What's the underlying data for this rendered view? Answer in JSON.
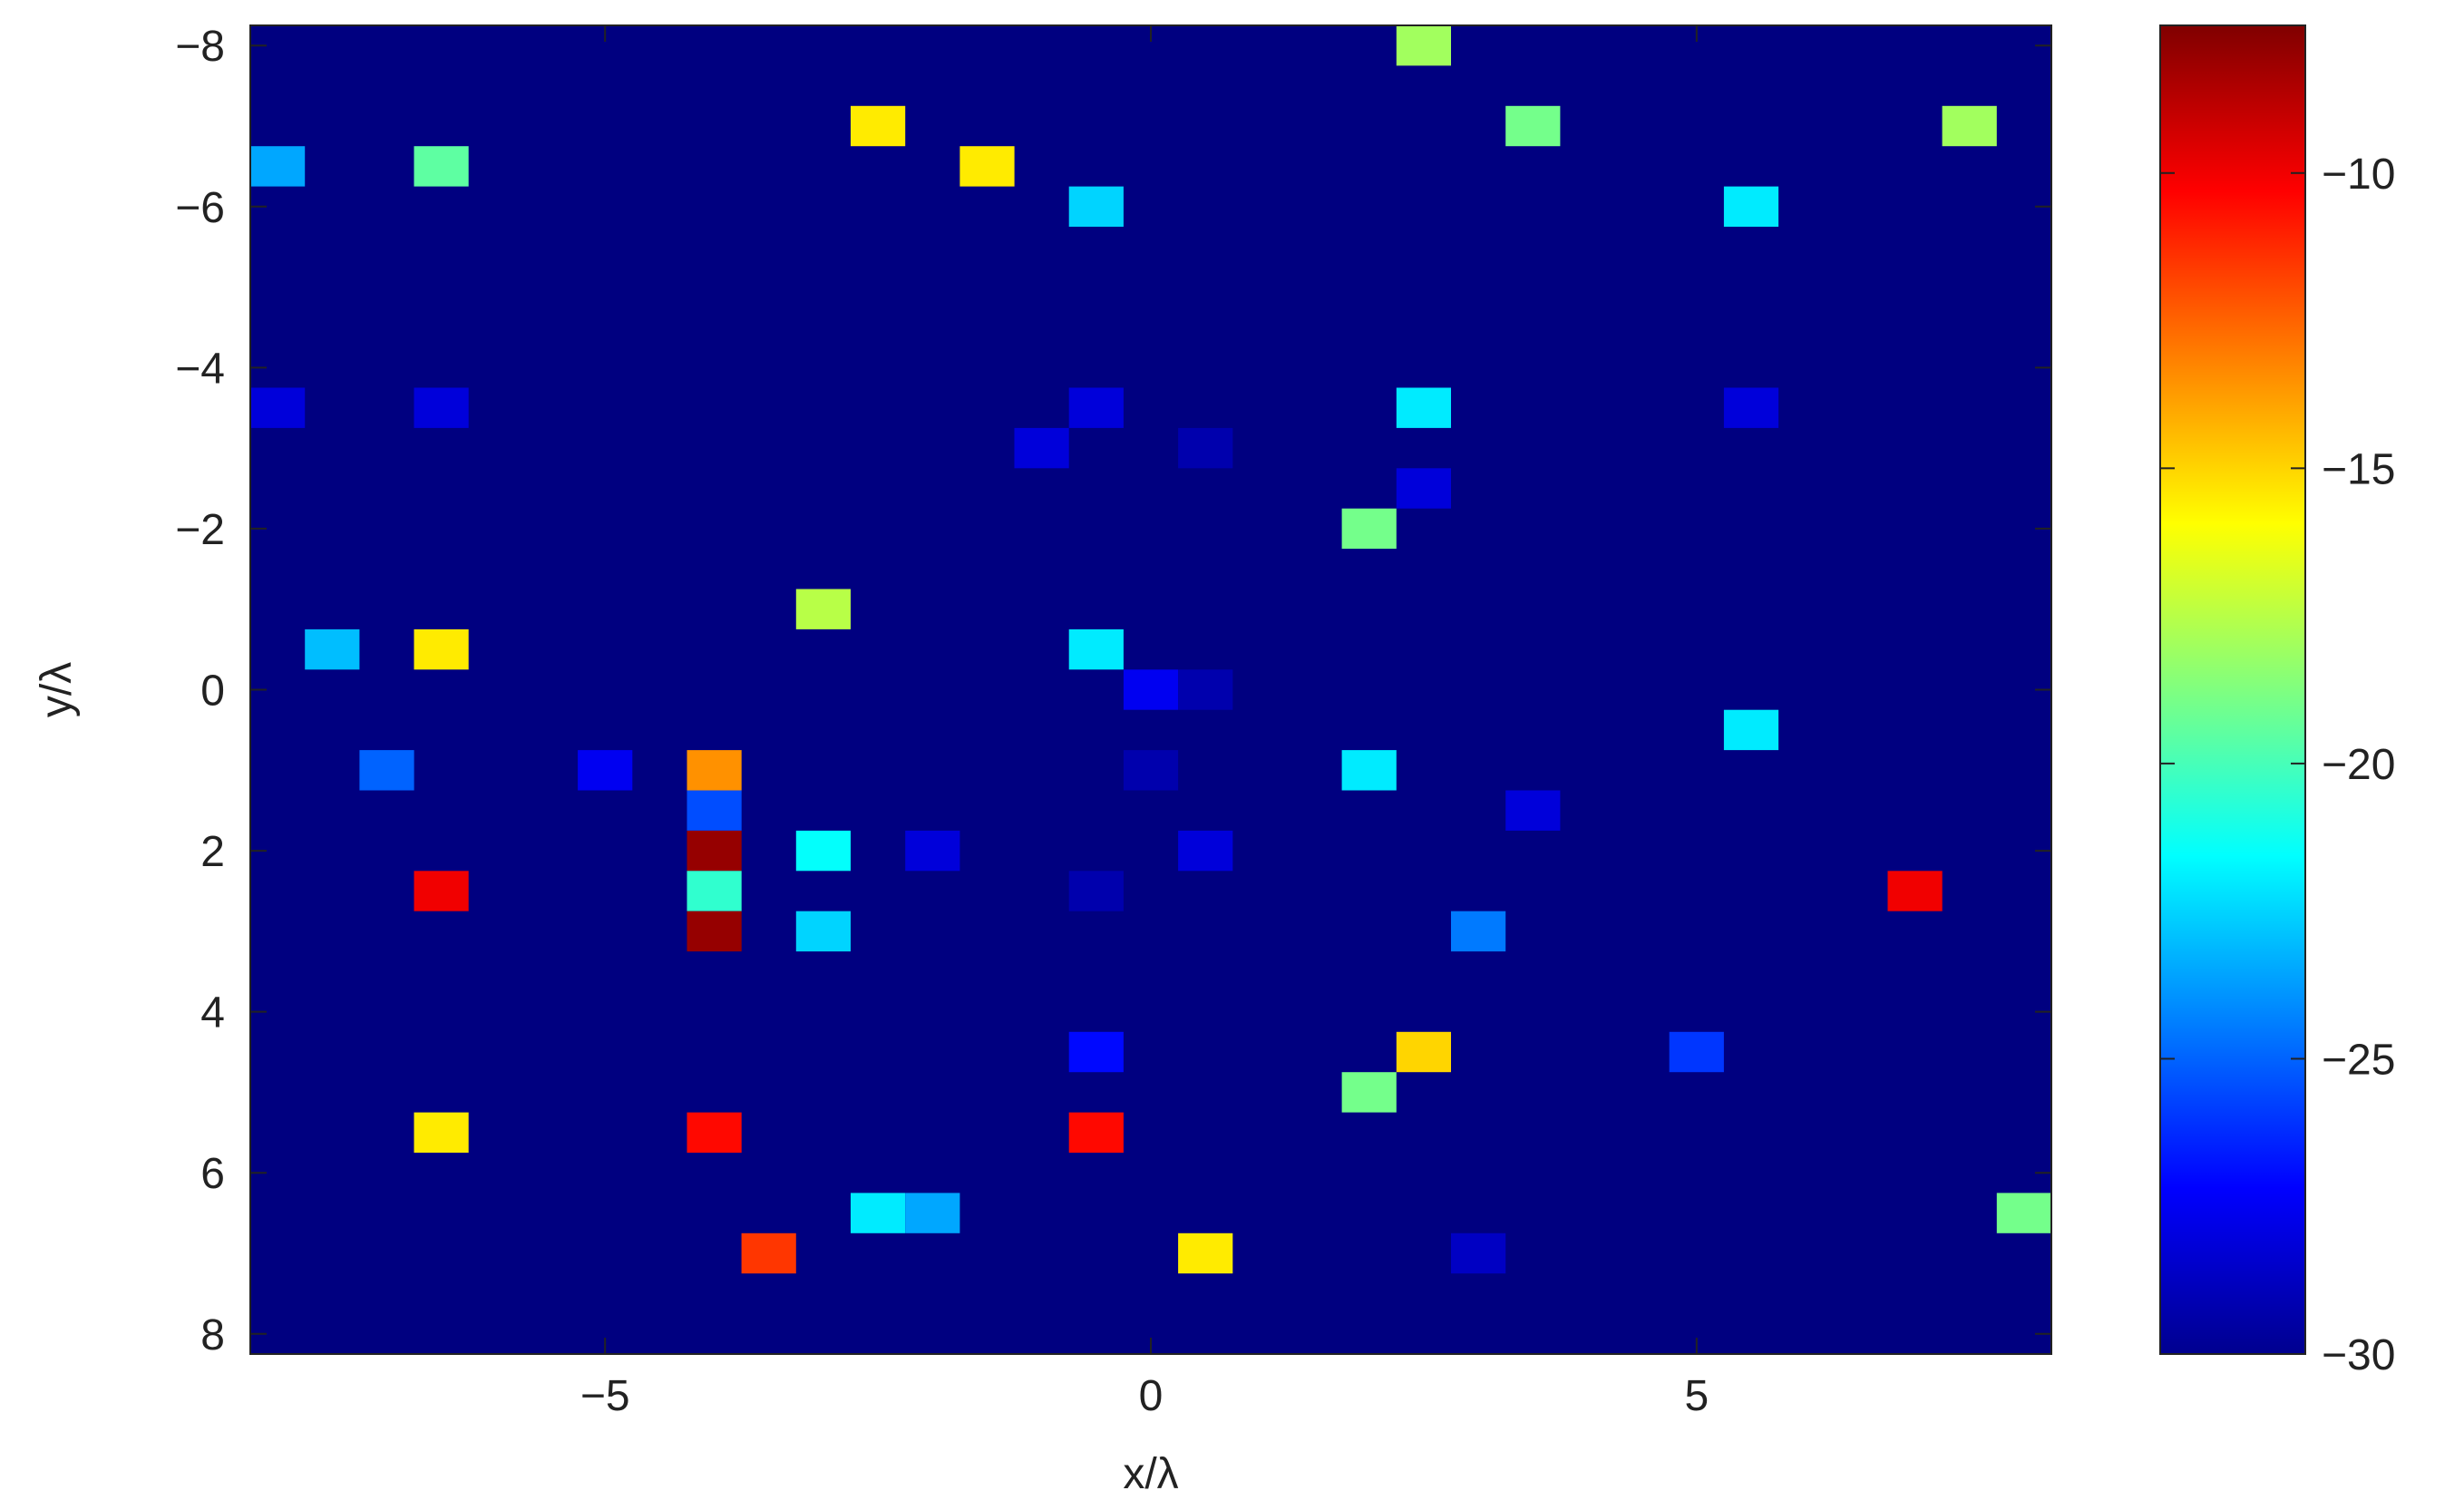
{
  "chart_data": {
    "type": "heatmap",
    "xlabel": "x/λ",
    "ylabel": "y/λ",
    "xlim": [
      -8.25,
      8.25
    ],
    "ylim": [
      8.25,
      -8.25
    ],
    "y_axis_reversed": true,
    "x_ticks": [
      -5,
      0,
      5
    ],
    "x_tick_labels": [
      "−5",
      "0",
      "5"
    ],
    "y_ticks": [
      -8,
      -6,
      -4,
      -2,
      0,
      2,
      4,
      6,
      8
    ],
    "y_tick_labels": [
      "−8",
      "−6",
      "−4",
      "−2",
      "0",
      "2",
      "4",
      "6",
      "8"
    ],
    "cell_size": 0.5,
    "colormap": "jet",
    "background_value": -30,
    "colorbar": {
      "range": [
        -30,
        -7.5
      ],
      "ticks": [
        -30,
        -25,
        -20,
        -15,
        -10
      ],
      "tick_labels": [
        "−30",
        "−25",
        "−20",
        "−15",
        "−10"
      ]
    },
    "grid": false,
    "points": [
      {
        "x": 2.5,
        "y": -8,
        "v": -18
      },
      {
        "x": -2.5,
        "y": -7,
        "v": -15.5
      },
      {
        "x": 3.5,
        "y": -7,
        "v": -19
      },
      {
        "x": 7.5,
        "y": -7,
        "v": -18
      },
      {
        "x": -8,
        "y": -6.5,
        "v": -23.5
      },
      {
        "x": -6.5,
        "y": -6.5,
        "v": -19.5
      },
      {
        "x": -1.5,
        "y": -6.5,
        "v": -15.5
      },
      {
        "x": -0.5,
        "y": -6,
        "v": -22.5
      },
      {
        "x": 5.5,
        "y": -6,
        "v": -22
      },
      {
        "x": -8,
        "y": -3.5,
        "v": -28
      },
      {
        "x": -6.5,
        "y": -3.5,
        "v": -28
      },
      {
        "x": -0.5,
        "y": -3.5,
        "v": -28
      },
      {
        "x": 2.5,
        "y": -3.5,
        "v": -22
      },
      {
        "x": 5.5,
        "y": -3.5,
        "v": -28
      },
      {
        "x": -1,
        "y": -3,
        "v": -28
      },
      {
        "x": 0.5,
        "y": -3,
        "v": -29
      },
      {
        "x": 2.5,
        "y": -2.5,
        "v": -28
      },
      {
        "x": 2,
        "y": -2,
        "v": -19
      },
      {
        "x": -3,
        "y": -1,
        "v": -17.5
      },
      {
        "x": -7.5,
        "y": -0.5,
        "v": -23
      },
      {
        "x": -6.5,
        "y": -0.5,
        "v": -15.5
      },
      {
        "x": -0.5,
        "y": -0.5,
        "v": -22
      },
      {
        "x": 0,
        "y": 0,
        "v": -27.5
      },
      {
        "x": 0.5,
        "y": 0,
        "v": -29
      },
      {
        "x": 5.5,
        "y": 0.5,
        "v": -22
      },
      {
        "x": -7,
        "y": 1,
        "v": -25
      },
      {
        "x": -5,
        "y": 1,
        "v": -27.5
      },
      {
        "x": -4,
        "y": 1,
        "v": -13.5
      },
      {
        "x": 0,
        "y": 1,
        "v": -29
      },
      {
        "x": 2,
        "y": 1,
        "v": -22
      },
      {
        "x": -4,
        "y": 1.5,
        "v": -25.5
      },
      {
        "x": 3.5,
        "y": 1.5,
        "v": -28
      },
      {
        "x": -4,
        "y": 2,
        "v": -8
      },
      {
        "x": -3,
        "y": 2,
        "v": -21.5
      },
      {
        "x": -2,
        "y": 2,
        "v": -28
      },
      {
        "x": 0.5,
        "y": 2,
        "v": -28
      },
      {
        "x": -6.5,
        "y": 2.5,
        "v": -10
      },
      {
        "x": -4,
        "y": 2.5,
        "v": -20.5
      },
      {
        "x": -0.5,
        "y": 2.5,
        "v": -29
      },
      {
        "x": 7,
        "y": 2.5,
        "v": -10
      },
      {
        "x": -4,
        "y": 3,
        "v": -8
      },
      {
        "x": -3,
        "y": 3,
        "v": -22.5
      },
      {
        "x": 3,
        "y": 3,
        "v": -24.5
      },
      {
        "x": -0.5,
        "y": 4.5,
        "v": -27
      },
      {
        "x": 2.5,
        "y": 4.5,
        "v": -15
      },
      {
        "x": 5,
        "y": 4.5,
        "v": -26
      },
      {
        "x": 2,
        "y": 5,
        "v": -19
      },
      {
        "x": -6.5,
        "y": 5.5,
        "v": -15.5
      },
      {
        "x": -4,
        "y": 5.5,
        "v": -10.5
      },
      {
        "x": -0.5,
        "y": 5.5,
        "v": -10.5
      },
      {
        "x": -2.5,
        "y": 6.5,
        "v": -22
      },
      {
        "x": -2,
        "y": 6.5,
        "v": -23.5
      },
      {
        "x": 8,
        "y": 6.5,
        "v": -19
      },
      {
        "x": -3.5,
        "y": 7,
        "v": -11.5
      },
      {
        "x": 0.5,
        "y": 7,
        "v": -15.5
      },
      {
        "x": 3,
        "y": 7,
        "v": -28.5
      }
    ]
  }
}
